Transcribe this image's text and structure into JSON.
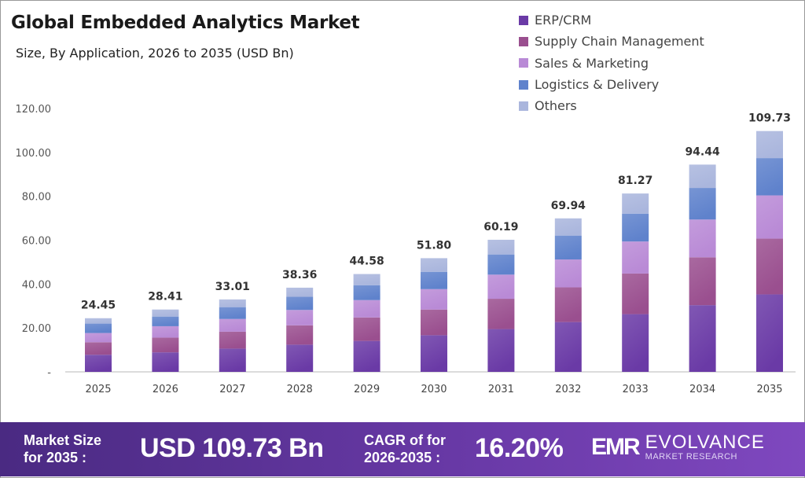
{
  "chart_data": {
    "type": "bar",
    "stacked": true,
    "title": "Global Embedded Analytics Market",
    "subtitle": "Size, By Application, 2026 to 2035 (USD Bn)",
    "xlabel": "",
    "ylabel": "",
    "categories": [
      "2025",
      "2026",
      "2027",
      "2028",
      "2029",
      "2030",
      "2031",
      "2032",
      "2033",
      "2034",
      "2035"
    ],
    "totals": [
      "24.45",
      "28.41",
      "33.01",
      "38.36",
      "44.58",
      "51.80",
      "60.19",
      "69.94",
      "81.27",
      "94.44",
      "109.73"
    ],
    "series": [
      {
        "name": "ERP/CRM",
        "color": "#6a3aa6",
        "values": [
          7.8,
          8.9,
          10.6,
          12.4,
          14.1,
          16.7,
          19.5,
          22.7,
          26.3,
          30.4,
          35.3
        ]
      },
      {
        "name": "Supply Chain Management",
        "color": "#9a4f8f",
        "values": [
          5.7,
          6.7,
          7.7,
          8.8,
          10.7,
          11.7,
          13.8,
          15.8,
          18.5,
          21.8,
          25.4
        ]
      },
      {
        "name": "Sales & Marketing",
        "color": "#b98ad6",
        "values": [
          4.2,
          5.2,
          5.8,
          7.0,
          7.9,
          9.3,
          11.0,
          12.7,
          14.6,
          17.2,
          19.7
        ]
      },
      {
        "name": "Logistics & Delivery",
        "color": "#5f82cc",
        "values": [
          4.3,
          4.4,
          5.4,
          6.0,
          6.8,
          7.9,
          9.2,
          10.9,
          12.7,
          14.4,
          17.0
        ]
      },
      {
        "name": "Others",
        "color": "#aab6dd",
        "values": [
          2.45,
          3.21,
          3.51,
          4.16,
          5.08,
          6.2,
          6.69,
          7.84,
          9.17,
          10.64,
          12.33
        ]
      }
    ],
    "yticks": [
      "-",
      "20.00",
      "40.00",
      "60.00",
      "80.00",
      "100.00",
      "120.00"
    ],
    "ylim": [
      0,
      120
    ],
    "grid": false,
    "legend": "top-right"
  },
  "footer": {
    "market_size_label_1": "Market Size",
    "market_size_label_2": "for 2035 :",
    "market_size_value": "USD 109.73 Bn",
    "cagr_label_1": "CAGR of for",
    "cagr_label_2": "2026-2035 :",
    "cagr_value": "16.20%",
    "logo_mark": "EMR",
    "logo_name": "EVOLVANCE",
    "logo_sub": "MARKET RESEARCH"
  }
}
